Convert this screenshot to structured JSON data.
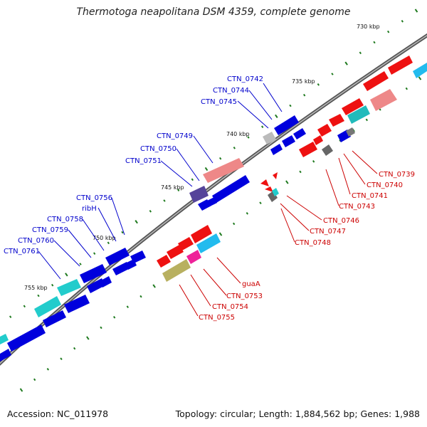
{
  "title": "Thermotoga neapolitana DSM 4359, complete genome",
  "footer": {
    "accession": "Accession: NC_011978",
    "topology": "Topology: circular; Length: 1,884,562 bp; Genes: 1,988"
  },
  "colors": {
    "backbone": "#777777",
    "plus_strand_label": "#0000cc",
    "minus_strand_label": "#cc0000",
    "tick": "#1f7a1f"
  },
  "ticks": [
    "730 kbp",
    "735 kbp",
    "740 kbp",
    "745 kbp",
    "750 kbp",
    "755 kbp"
  ],
  "genes_plus": [
    "CTN_0742",
    "CTN_0744",
    "CTN_0745",
    "CTN_0749",
    "CTN_0750",
    "CTN_0751",
    "CTN_0756",
    "ribH",
    "CTN_0758",
    "CTN_0759",
    "CTN_0760",
    "CTN_0761"
  ],
  "genes_minus": [
    "CTN_0739",
    "CTN_0740",
    "CTN_0741",
    "CTN_0743",
    "CTN_0746",
    "CTN_0747",
    "CTN_0748",
    "guaA",
    "CTN_0753",
    "CTN_0754",
    "CTN_0755"
  ]
}
